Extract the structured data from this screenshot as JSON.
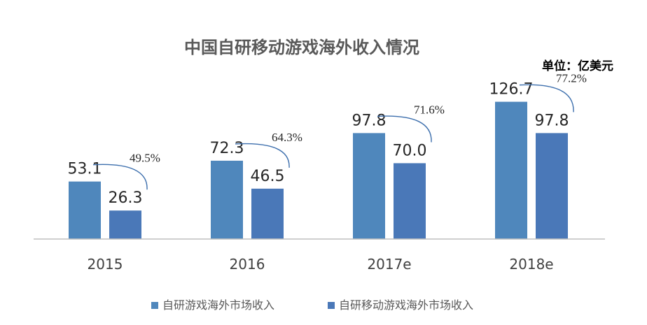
{
  "chart_data": {
    "type": "bar",
    "title": "中国自研移动游戏海外收入情况",
    "unit_label": "单位：亿美元",
    "categories": [
      "2015",
      "2016",
      "2017e",
      "2018e"
    ],
    "series": [
      {
        "name": "自研游戏海外市场收入",
        "values": [
          53.1,
          72.3,
          97.8,
          126.7
        ],
        "labels": [
          "53.1",
          "72.3",
          "97.8",
          "126.7"
        ],
        "color": "#4f87bc"
      },
      {
        "name": "自研移动游戏海外市场收入",
        "values": [
          26.3,
          46.5,
          70.0,
          97.8
        ],
        "labels": [
          "26.3",
          "46.5",
          "70.0",
          "97.8"
        ],
        "color": "#4a78b8"
      }
    ],
    "ratios": [
      "49.5%",
      "64.3%",
      "71.6%",
      "77.2%"
    ],
    "ylim": [
      0,
      140
    ],
    "xlabel": "",
    "ylabel": "",
    "grid": false,
    "legend_position": "bottom"
  }
}
